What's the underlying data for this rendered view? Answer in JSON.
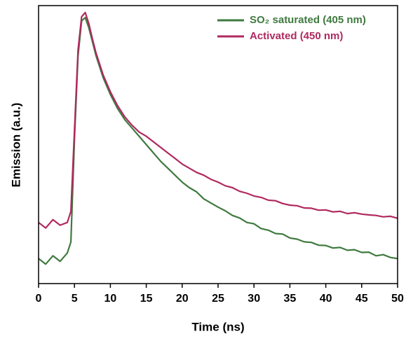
{
  "chart_data": {
    "type": "line",
    "xlabel": "Time (ns)",
    "ylabel": "Emission (a.u.)",
    "x": [
      0,
      1,
      2,
      3,
      4,
      4.5,
      5,
      5.5,
      6,
      6.5,
      7,
      7.5,
      8,
      9,
      10,
      11,
      12,
      13,
      14,
      15,
      16,
      17,
      18,
      19,
      20,
      21,
      22,
      23,
      24,
      25,
      26,
      27,
      28,
      29,
      30,
      31,
      32,
      33,
      34,
      35,
      36,
      37,
      38,
      39,
      40,
      41,
      42,
      43,
      44,
      45,
      46,
      47,
      48,
      49,
      50
    ],
    "series": [
      {
        "name": "SO₂ saturated (405 nm)",
        "color": "#3f7a3f",
        "values": [
          0.09,
          0.07,
          0.1,
          0.08,
          0.11,
          0.15,
          0.52,
          0.82,
          0.945,
          0.957,
          0.92,
          0.87,
          0.82,
          0.74,
          0.68,
          0.63,
          0.59,
          0.56,
          0.53,
          0.5,
          0.47,
          0.44,
          0.415,
          0.39,
          0.365,
          0.345,
          0.33,
          0.305,
          0.29,
          0.275,
          0.262,
          0.245,
          0.236,
          0.22,
          0.215,
          0.198,
          0.192,
          0.18,
          0.178,
          0.164,
          0.16,
          0.15,
          0.148,
          0.138,
          0.137,
          0.128,
          0.13,
          0.12,
          0.122,
          0.112,
          0.113,
          0.1,
          0.104,
          0.094,
          0.09
        ]
      },
      {
        "name": "Activated (450 nm)",
        "color": "#b0295f",
        "values": [
          0.22,
          0.2,
          0.23,
          0.21,
          0.22,
          0.26,
          0.55,
          0.84,
          0.96,
          0.975,
          0.935,
          0.88,
          0.83,
          0.75,
          0.69,
          0.64,
          0.6,
          0.57,
          0.545,
          0.53,
          0.51,
          0.49,
          0.47,
          0.45,
          0.43,
          0.415,
          0.4,
          0.39,
          0.375,
          0.365,
          0.352,
          0.345,
          0.332,
          0.325,
          0.315,
          0.31,
          0.3,
          0.298,
          0.288,
          0.282,
          0.28,
          0.272,
          0.271,
          0.264,
          0.265,
          0.258,
          0.26,
          0.252,
          0.255,
          0.25,
          0.247,
          0.245,
          0.24,
          0.242,
          0.235
        ]
      }
    ],
    "xlim": [
      0,
      50
    ],
    "xticks": [
      0,
      5,
      10,
      15,
      20,
      25,
      30,
      35,
      40,
      45,
      50
    ],
    "ylim": [
      0,
      1
    ],
    "legend": "upper right"
  }
}
